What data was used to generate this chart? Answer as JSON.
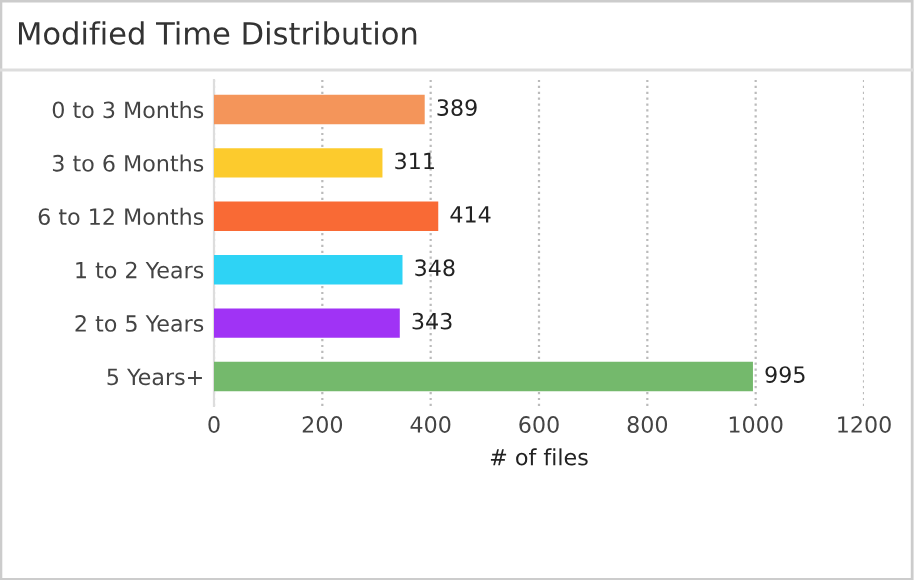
{
  "chart_data": {
    "type": "bar",
    "orientation": "horizontal",
    "title": "Modified Time Distribution",
    "xlabel": "# of files",
    "categories": [
      "0 to 3 Months",
      "3 to 6 Months",
      "6 to 12 Months",
      "1 to 2 Years",
      "2 to 5 Years",
      "5 Years+"
    ],
    "values": [
      389,
      311,
      414,
      348,
      343,
      995
    ],
    "colors": [
      "#f4955a",
      "#fccb2d",
      "#f96a35",
      "#2ed3f5",
      "#a033f5",
      "#74b96c"
    ],
    "xlim": [
      0,
      1200
    ],
    "xticks": [
      0,
      200,
      400,
      600,
      800,
      1000,
      1200
    ],
    "grid": "x",
    "data_labels": true
  }
}
